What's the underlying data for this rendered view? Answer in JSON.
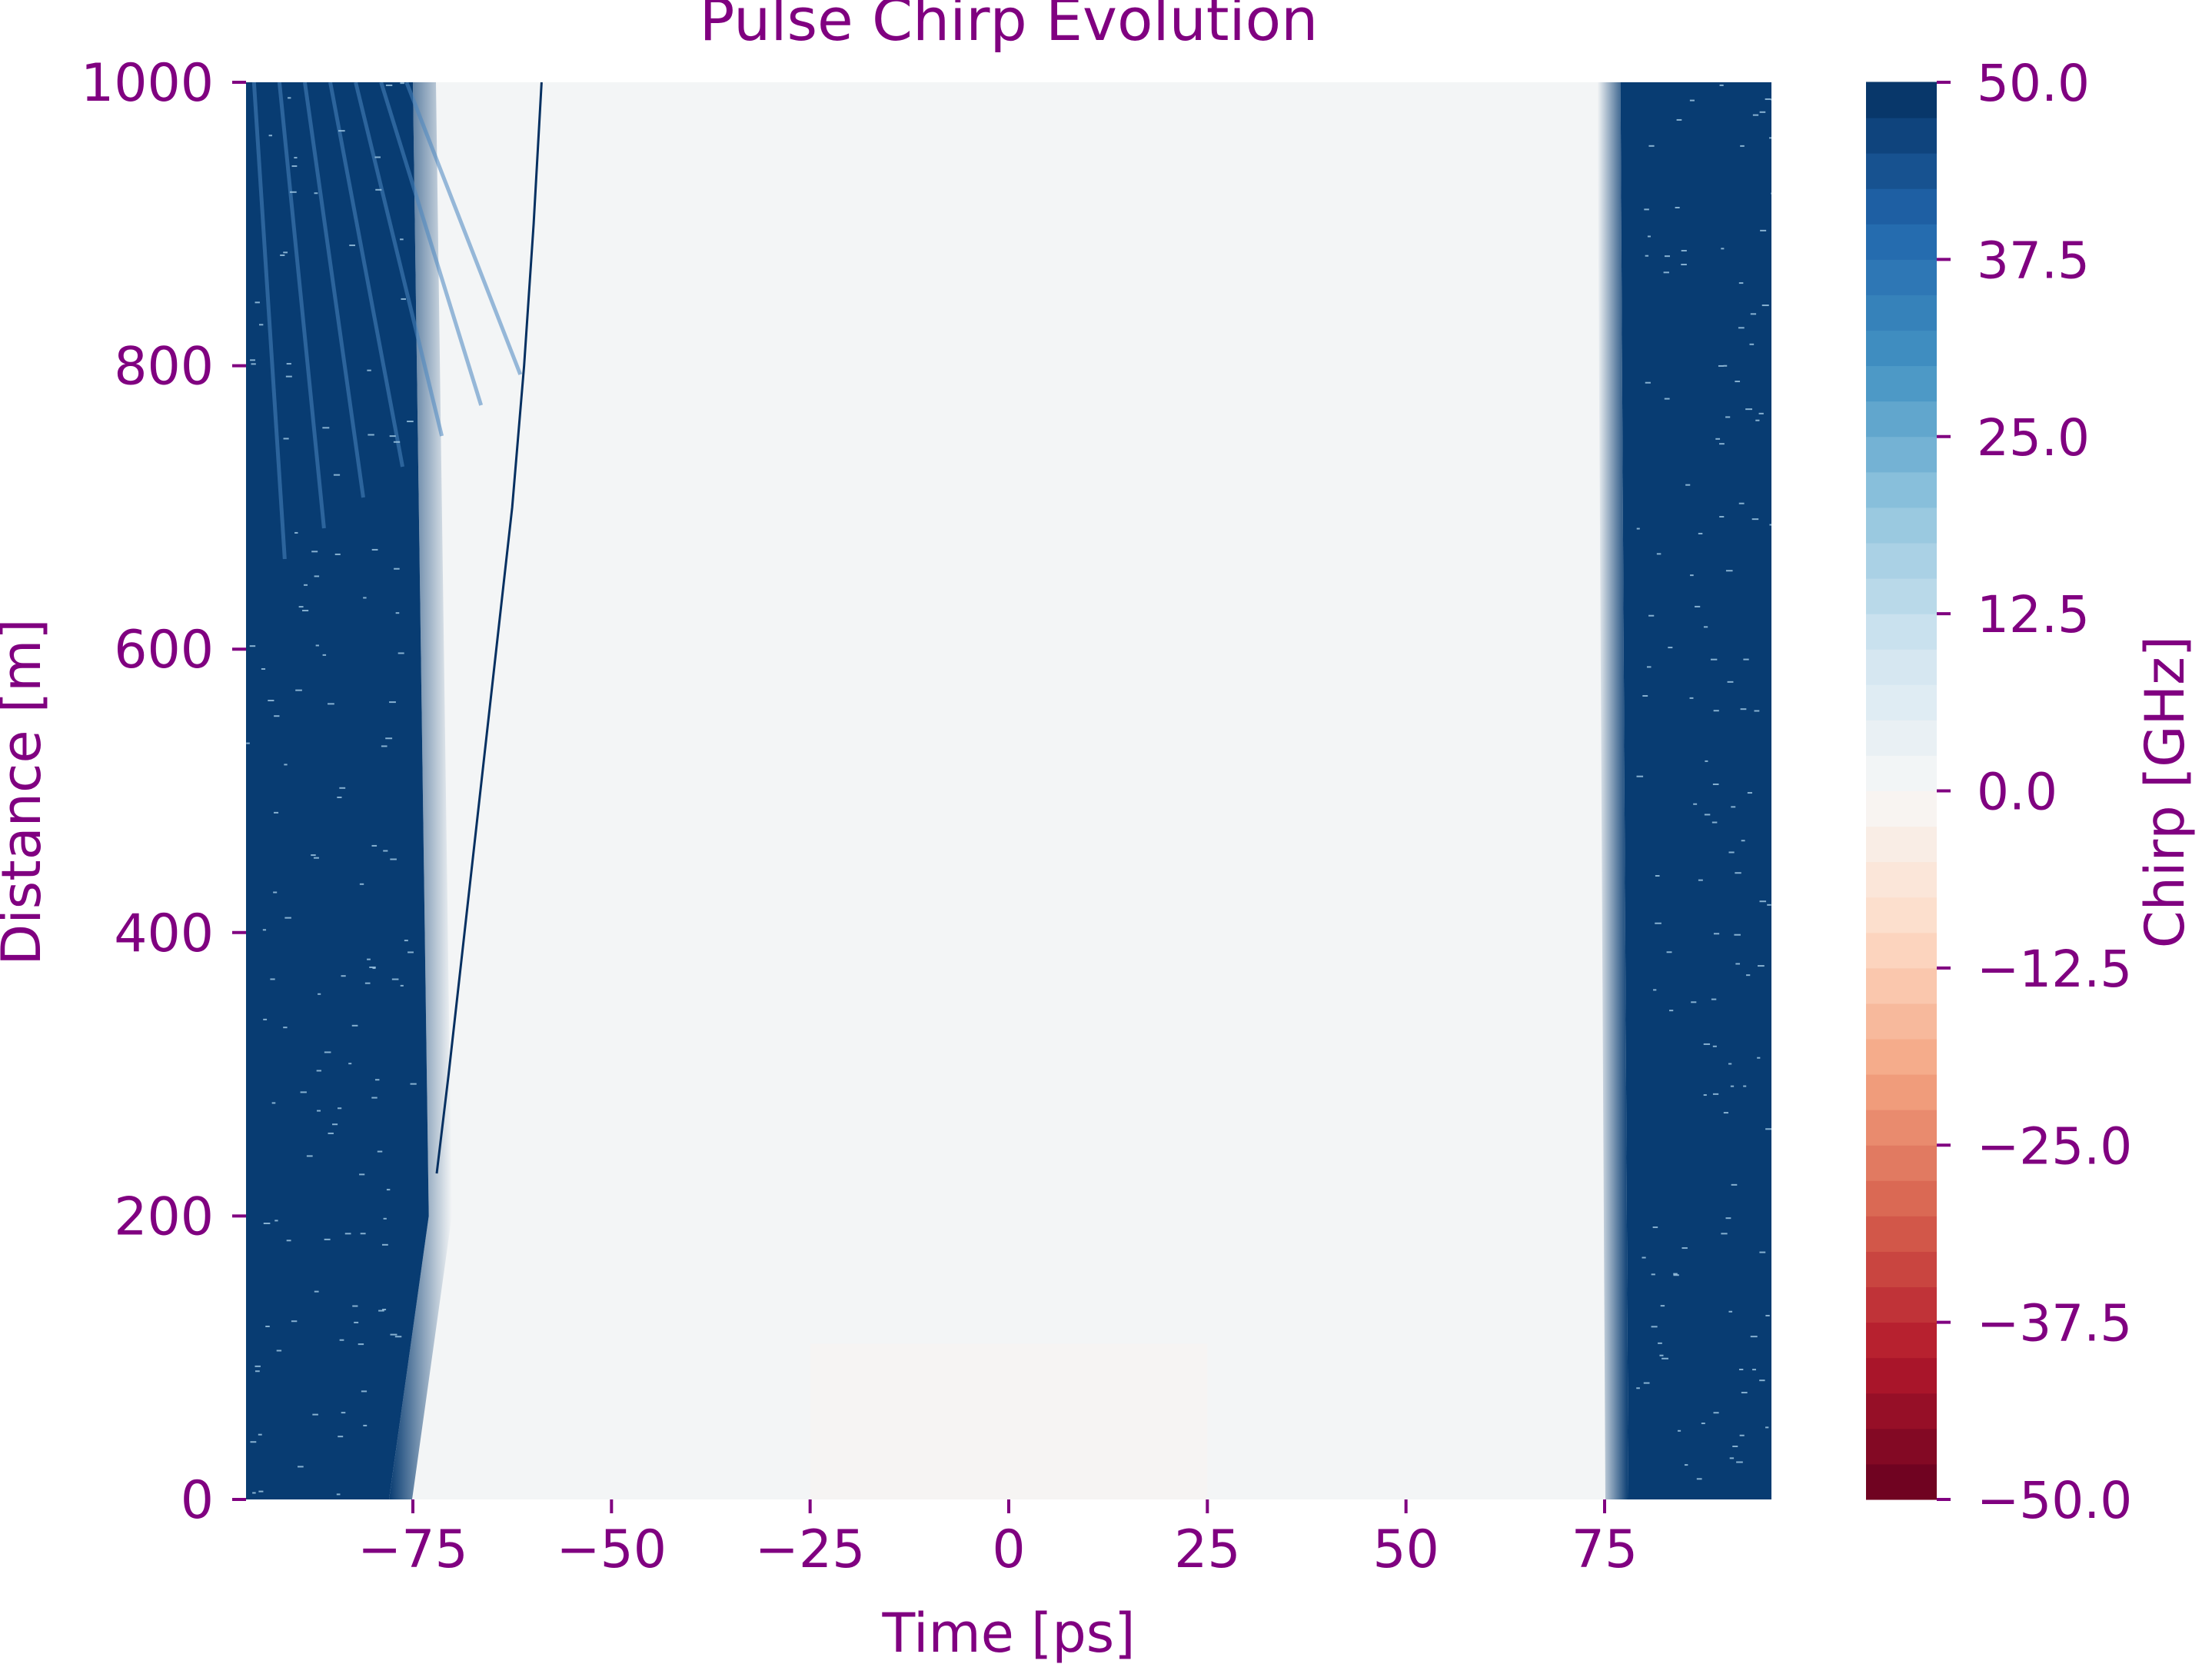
{
  "chart_data": {
    "type": "heatmap",
    "title": "Pulse Chirp Evolution",
    "xlabel": "Time [ps]",
    "ylabel": "Distance [m]",
    "colorbar_label": "Chirp [GHz]",
    "xlim": [
      -96,
      96
    ],
    "ylim": [
      0,
      1000
    ],
    "xticks": [
      -75,
      -50,
      -25,
      0,
      25,
      50,
      75
    ],
    "xtick_labels": [
      "−75",
      "−50",
      "−25",
      "0",
      "25",
      "50",
      "75"
    ],
    "yticks": [
      0,
      200,
      400,
      600,
      800,
      1000
    ],
    "ytick_labels": [
      "0",
      "200",
      "400",
      "600",
      "800",
      "1000"
    ],
    "colorbar_range": [
      -50.0,
      50.0
    ],
    "colorbar_ticks": [
      50.0,
      37.5,
      25.0,
      12.5,
      0.0,
      -12.5,
      -25.0,
      -37.5,
      -50.0
    ],
    "colorbar_tick_labels": [
      "50.0",
      "37.5",
      "25.0",
      "12.5",
      "0.0",
      "−12.5",
      "−25.0",
      "−37.5",
      "−50.0"
    ],
    "colorbar_levels": 40,
    "colormap": "RdBu",
    "grid": false,
    "regions": {
      "left_edge": {
        "chirp": 50.0,
        "x_start": -96,
        "boundary_at_y0": -78,
        "boundary_at_y200": -73,
        "boundary_at_y1000": -75
      },
      "right_edge": {
        "chirp": 50.0,
        "x_end": 96,
        "boundary_at_y0": 78,
        "boundary_at_y1000": 77
      },
      "center": {
        "chirp": 1.0
      },
      "center_low_distance": {
        "chirp": -1.0,
        "x_range": [
          -25,
          25
        ],
        "y_range": [
          0,
          110
        ]
      }
    },
    "chirp_trace": {
      "chirp": 50.0,
      "points": [
        [
          -72,
          230
        ],
        [
          -70.5,
          300
        ],
        [
          -68.5,
          400
        ],
        [
          -66.5,
          500
        ],
        [
          -64.5,
          600
        ],
        [
          -62.5,
          700
        ],
        [
          -61,
          800
        ],
        [
          -59.8,
          900
        ],
        [
          -58.8,
          1000
        ]
      ]
    },
    "colors": {
      "text": "#800080",
      "positive_max": "#083c72",
      "near_zero": "#f0f3f4",
      "negative_max": "#67001f"
    }
  }
}
